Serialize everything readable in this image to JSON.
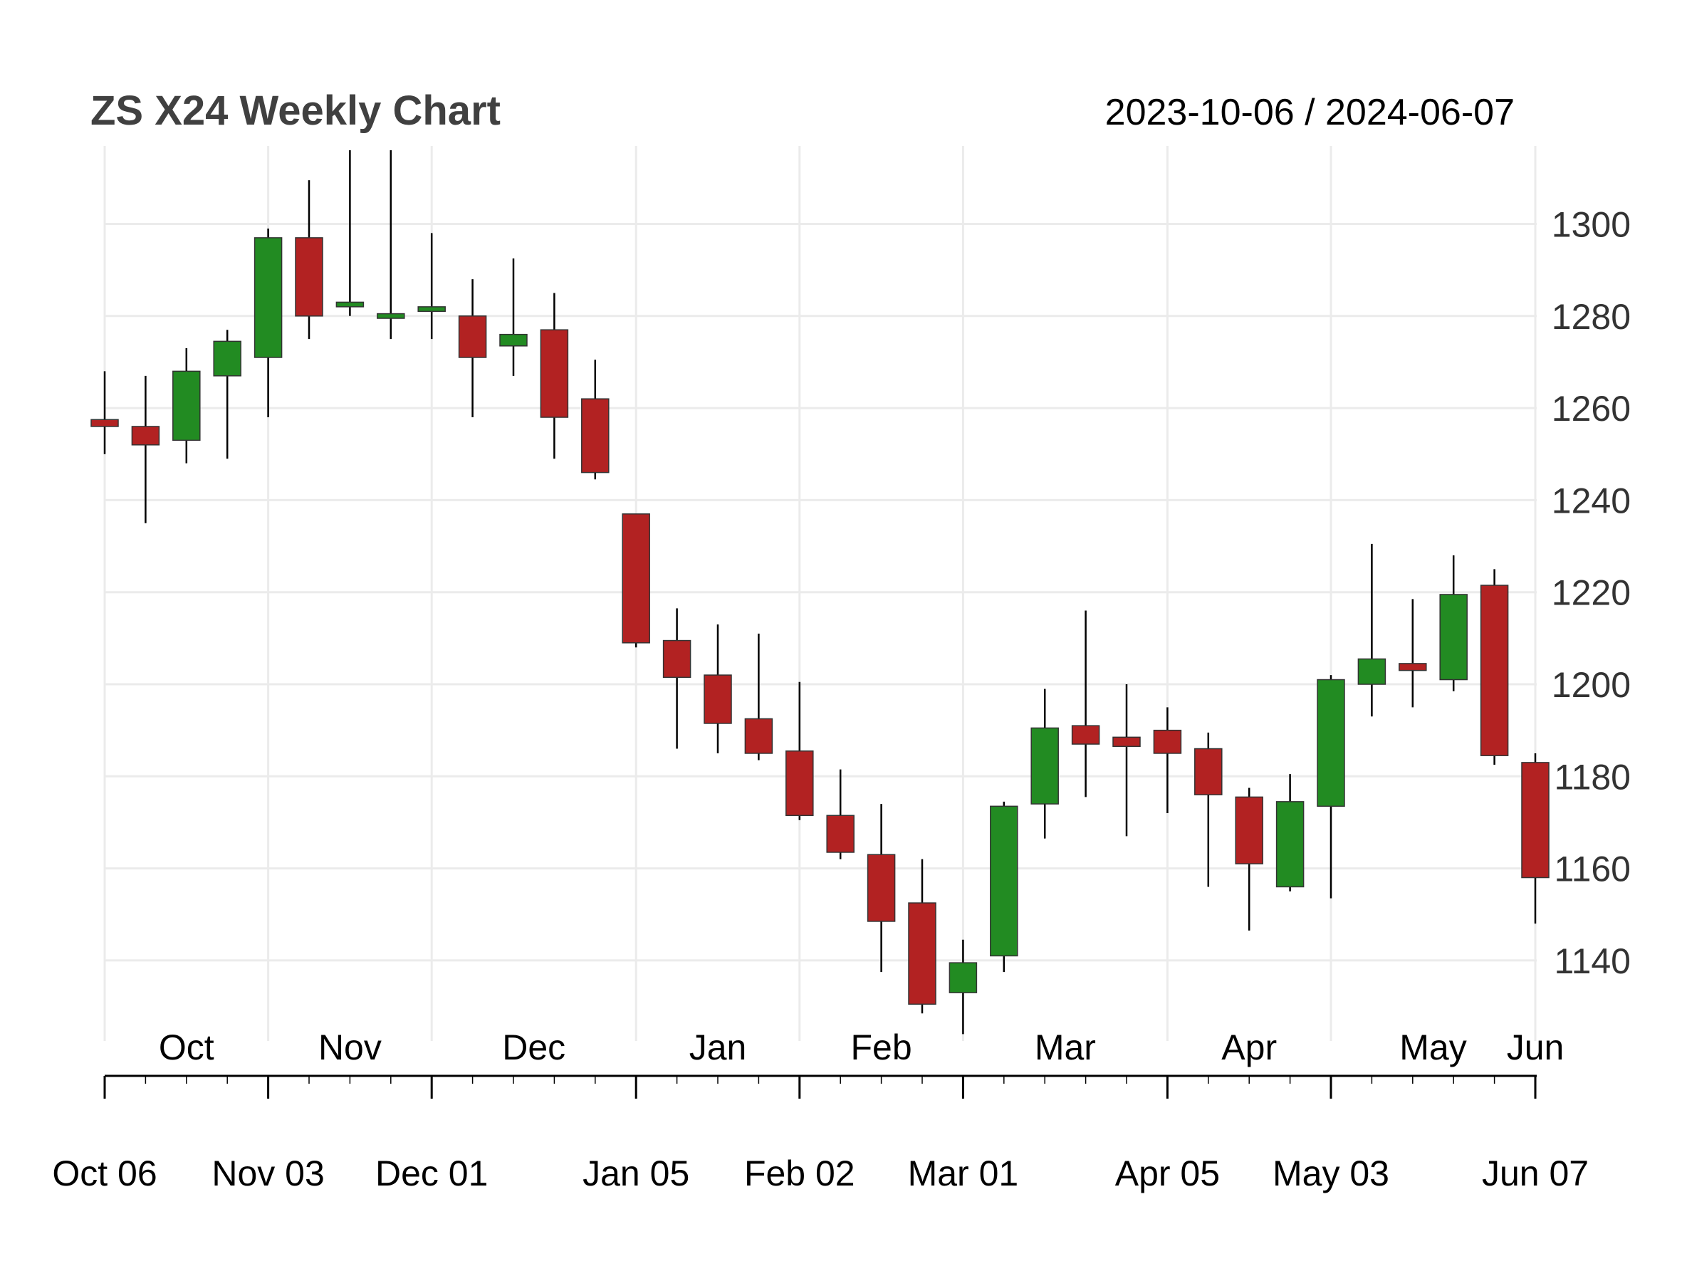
{
  "chart_data": {
    "type": "candlestick",
    "title": "ZS X24 Weekly Chart",
    "date_range": "2023-10-06 / 2024-06-07",
    "ylim": [
      1123,
      1316
    ],
    "y_ticks": [
      1140,
      1160,
      1180,
      1200,
      1220,
      1240,
      1260,
      1280,
      1300
    ],
    "grid": true,
    "month_labels": [
      {
        "label": "Oct",
        "week": 2
      },
      {
        "label": "Nov",
        "week": 6
      },
      {
        "label": "Dec",
        "week": 10.5
      },
      {
        "label": "Jan",
        "week": 15
      },
      {
        "label": "Feb",
        "week": 19
      },
      {
        "label": "Mar",
        "week": 23.5
      },
      {
        "label": "Apr",
        "week": 28
      },
      {
        "label": "May",
        "week": 32.5
      },
      {
        "label": "Jun",
        "week": 35
      }
    ],
    "date_ticks": [
      {
        "label": "Oct 06",
        "week": 0
      },
      {
        "label": "Nov 03",
        "week": 4
      },
      {
        "label": "Dec 01",
        "week": 8
      },
      {
        "label": "Jan 05",
        "week": 13
      },
      {
        "label": "Feb 02",
        "week": 17
      },
      {
        "label": "Mar 01",
        "week": 21
      },
      {
        "label": "Apr 05",
        "week": 26
      },
      {
        "label": "May 03",
        "week": 30
      },
      {
        "label": "Jun 07",
        "week": 35
      }
    ],
    "colors": {
      "up": "#228B22",
      "down": "#B22222",
      "wick": "#000000",
      "grid": "#EBEBEB"
    },
    "candles": [
      {
        "open": 1257.5,
        "high": 1268.0,
        "low": 1250.0,
        "close": 1256.0
      },
      {
        "open": 1256.0,
        "high": 1267.0,
        "low": 1235.0,
        "close": 1252.0
      },
      {
        "open": 1253.0,
        "high": 1273.0,
        "low": 1248.0,
        "close": 1268.0
      },
      {
        "open": 1267.0,
        "high": 1277.0,
        "low": 1249.0,
        "close": 1274.5
      },
      {
        "open": 1271.0,
        "high": 1299.0,
        "low": 1258.0,
        "close": 1297.0
      },
      {
        "open": 1297.0,
        "high": 1309.5,
        "low": 1275.0,
        "close": 1280.0
      },
      {
        "open": 1282.0,
        "high": 1316.0,
        "low": 1280.0,
        "close": 1283.0
      },
      {
        "open": 1279.5,
        "high": 1316.0,
        "low": 1275.0,
        "close": 1280.5
      },
      {
        "open": 1281.0,
        "high": 1298.0,
        "low": 1275.0,
        "close": 1282.0
      },
      {
        "open": 1280.0,
        "high": 1288.0,
        "low": 1258.0,
        "close": 1271.0
      },
      {
        "open": 1273.5,
        "high": 1292.5,
        "low": 1267.0,
        "close": 1276.0
      },
      {
        "open": 1277.0,
        "high": 1285.0,
        "low": 1249.0,
        "close": 1258.0
      },
      {
        "open": 1262.0,
        "high": 1270.5,
        "low": 1244.5,
        "close": 1246.0
      },
      {
        "open": 1237.0,
        "high": 1237.0,
        "low": 1208.0,
        "close": 1209.0
      },
      {
        "open": 1209.5,
        "high": 1216.5,
        "low": 1186.0,
        "close": 1201.5
      },
      {
        "open": 1202.0,
        "high": 1213.0,
        "low": 1185.0,
        "close": 1191.5
      },
      {
        "open": 1192.5,
        "high": 1211.0,
        "low": 1183.5,
        "close": 1185.0
      },
      {
        "open": 1185.5,
        "high": 1200.5,
        "low": 1170.5,
        "close": 1171.5
      },
      {
        "open": 1171.5,
        "high": 1181.5,
        "low": 1162.0,
        "close": 1163.5
      },
      {
        "open": 1163.0,
        "high": 1174.0,
        "low": 1137.5,
        "close": 1148.5
      },
      {
        "open": 1152.5,
        "high": 1162.0,
        "low": 1128.5,
        "close": 1130.5
      },
      {
        "open": 1133.0,
        "high": 1144.5,
        "low": 1124.0,
        "close": 1139.5
      },
      {
        "open": 1141.0,
        "high": 1174.5,
        "low": 1137.5,
        "close": 1173.5
      },
      {
        "open": 1174.0,
        "high": 1199.0,
        "low": 1166.5,
        "close": 1190.5
      },
      {
        "open": 1191.0,
        "high": 1216.0,
        "low": 1175.5,
        "close": 1187.0
      },
      {
        "open": 1188.5,
        "high": 1200.0,
        "low": 1167.0,
        "close": 1186.5
      },
      {
        "open": 1190.0,
        "high": 1195.0,
        "low": 1172.0,
        "close": 1185.0
      },
      {
        "open": 1186.0,
        "high": 1189.5,
        "low": 1156.0,
        "close": 1176.0
      },
      {
        "open": 1175.5,
        "high": 1177.5,
        "low": 1146.5,
        "close": 1161.0
      },
      {
        "open": 1156.0,
        "high": 1180.5,
        "low": 1155.0,
        "close": 1174.5
      },
      {
        "open": 1173.5,
        "high": 1202.0,
        "low": 1153.5,
        "close": 1201.0
      },
      {
        "open": 1200.0,
        "high": 1230.5,
        "low": 1193.0,
        "close": 1205.5
      },
      {
        "open": 1204.5,
        "high": 1218.5,
        "low": 1195.0,
        "close": 1203.0
      },
      {
        "open": 1201.0,
        "high": 1228.0,
        "low": 1198.5,
        "close": 1219.5
      },
      {
        "open": 1221.5,
        "high": 1225.0,
        "low": 1182.5,
        "close": 1184.5
      },
      {
        "open": 1183.0,
        "high": 1185.0,
        "low": 1148.0,
        "close": 1158.0
      }
    ]
  }
}
